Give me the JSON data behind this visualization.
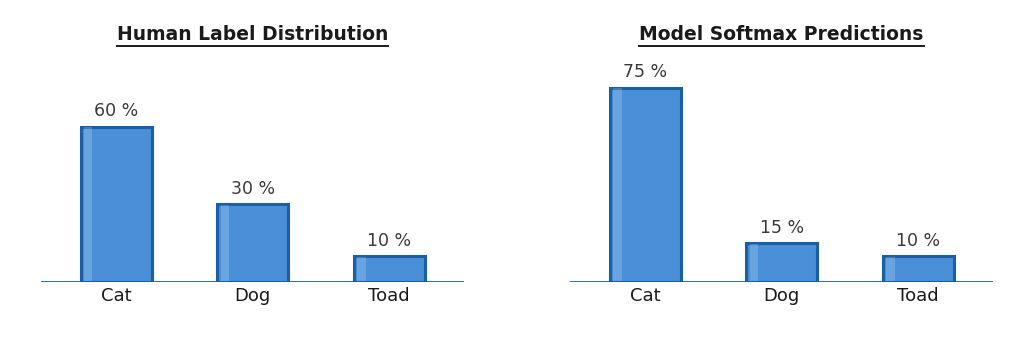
{
  "chart1": {
    "title": "Human Label Distribution",
    "categories": [
      "Cat",
      "Dog",
      "Toad"
    ],
    "values": [
      60,
      30,
      10
    ],
    "labels": [
      "60 %",
      "30 %",
      "10 %"
    ]
  },
  "chart2": {
    "title": "Model Softmax Predictions",
    "categories": [
      "Cat",
      "Dog",
      "Toad"
    ],
    "values": [
      75,
      15,
      10
    ],
    "labels": [
      "75 %",
      "15 %",
      "10 %"
    ]
  },
  "bar_color": "#4A90D9",
  "bar_edge_color": "#1B5EA8",
  "text_color": "#1a1a1a",
  "label_color": "#3a3a3a",
  "bg_color": "#ffffff",
  "title_fontsize": 13.5,
  "label_fontsize": 12.5,
  "tick_fontsize": 13,
  "bar_width": 0.52,
  "ylim_max": 85,
  "x_positions": [
    0,
    1,
    2
  ]
}
